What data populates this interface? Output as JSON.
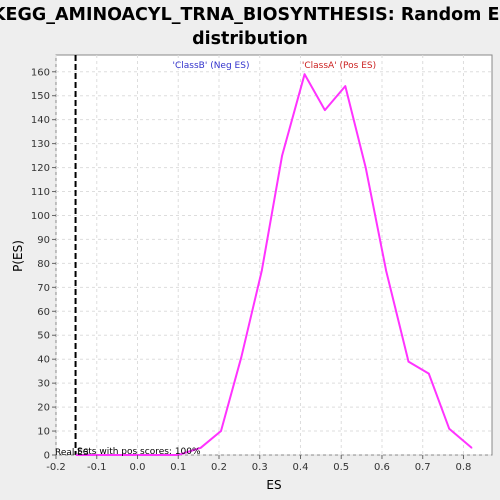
{
  "chart_data": {
    "type": "line",
    "title_line1": "KEGG_AMINOACYL_TRNA_BIOSYNTHESIS: Random ES",
    "title_line2": "distribution",
    "xlabel": "ES",
    "ylabel": "P(ES)",
    "xlim": [
      -0.2,
      0.87
    ],
    "ylim": [
      0,
      167
    ],
    "x_ticks": [
      -0.2,
      -0.1,
      0.0,
      0.1,
      0.2,
      0.3,
      0.4,
      0.5,
      0.6,
      0.7,
      0.8
    ],
    "x_tick_labels": [
      "-0.2",
      "-0.1",
      "0.0",
      "0.1",
      "0.2",
      "0.3",
      "0.4",
      "0.5",
      "0.6",
      "0.7",
      "0.8"
    ],
    "y_ticks": [
      0,
      10,
      20,
      30,
      40,
      50,
      60,
      70,
      80,
      90,
      100,
      110,
      120,
      130,
      140,
      150,
      160
    ],
    "y_tick_labels": [
      "0",
      "10",
      "20",
      "30",
      "40",
      "50",
      "60",
      "70",
      "80",
      "90",
      "100",
      "110",
      "120",
      "130",
      "140",
      "150",
      "160"
    ],
    "grid": true,
    "series": [
      {
        "color": "#ff33ff",
        "x": [
          -0.15,
          -0.1,
          -0.05,
          0.0,
          0.05,
          0.1,
          0.155,
          0.205,
          0.255,
          0.305,
          0.355,
          0.41,
          0.46,
          0.51,
          0.56,
          0.61,
          0.665,
          0.715,
          0.765,
          0.82
        ],
        "y": [
          0,
          0,
          0,
          0,
          0,
          0,
          3,
          10,
          41,
          77,
          125,
          159,
          144,
          154,
          120,
          77,
          39,
          34,
          11,
          3
        ]
      }
    ],
    "reference_line": {
      "x": -0.152,
      "color": "#000000",
      "style": "dashed"
    },
    "annotations": {
      "classB": {
        "text": "'ClassB' (Neg ES)",
        "color": "#3333cc"
      },
      "classA": {
        "text": "'ClassA' (Pos ES)",
        "color": "#cc2222"
      },
      "real": {
        "text": "Real ES",
        "color": "#000000"
      },
      "sets": {
        "text": "Sets with pos scores: 100%",
        "color": "#000000"
      }
    }
  }
}
